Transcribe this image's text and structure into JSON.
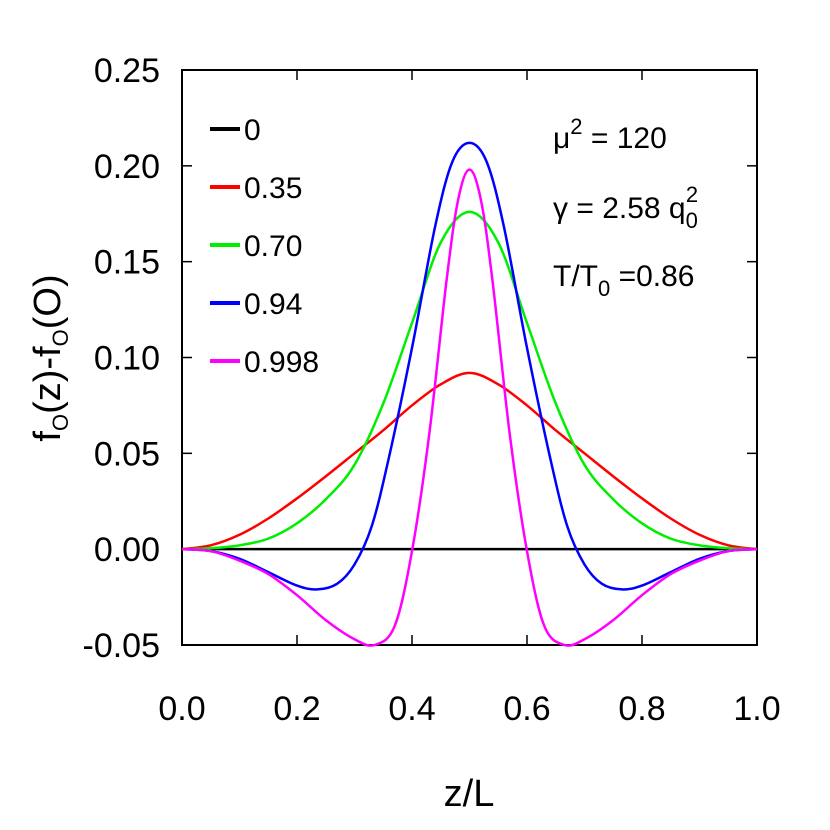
{
  "chart_data": {
    "type": "line",
    "xlabel": "z/L",
    "ylabel": {
      "main": "f",
      "sub1": "O",
      "mid": "(z)-f",
      "sub2": "O",
      "end": "(O)"
    },
    "xlim": [
      0.0,
      1.0
    ],
    "ylim": [
      -0.05,
      0.25
    ],
    "x_ticks": [
      "0.0",
      "0.2",
      "0.4",
      "0.6",
      "0.8",
      "1.0"
    ],
    "x_tick_values": [
      0.0,
      0.2,
      0.4,
      0.6,
      0.8,
      1.0
    ],
    "y_ticks": [
      "-0.05",
      "0.00",
      "0.05",
      "0.10",
      "0.15",
      "0.20",
      "0.25"
    ],
    "y_tick_values": [
      -0.05,
      0.0,
      0.05,
      0.1,
      0.15,
      0.2,
      0.25
    ],
    "grid": false,
    "legend_position": "top-left",
    "annotations": {
      "line1": {
        "pre": "μ",
        "sup": "2",
        "post": " = 120"
      },
      "line2": {
        "pre": "γ = 2.58 q",
        "sub": "0",
        "sup": "2"
      },
      "line3": {
        "pre": "T/T",
        "sub": "0",
        "post": " =0.86"
      }
    },
    "series": [
      {
        "name": "0",
        "color": "#000000",
        "x": [
          0,
          0.1,
          0.2,
          0.3,
          0.4,
          0.5,
          0.6,
          0.7,
          0.8,
          0.9,
          1.0
        ],
        "y": [
          0,
          0,
          0,
          0,
          0,
          0,
          0,
          0,
          0,
          0,
          0
        ]
      },
      {
        "name": "0.35",
        "color": "#ff0000",
        "x": [
          0,
          0.05,
          0.1,
          0.15,
          0.2,
          0.25,
          0.3,
          0.35,
          0.4,
          0.45,
          0.5,
          0.55,
          0.6,
          0.65,
          0.7,
          0.75,
          0.8,
          0.85,
          0.9,
          0.95,
          1.0
        ],
        "y": [
          0,
          0.002,
          0.0075,
          0.016,
          0.0265,
          0.038,
          0.05,
          0.062,
          0.075,
          0.086,
          0.092,
          0.086,
          0.075,
          0.062,
          0.05,
          0.038,
          0.0265,
          0.016,
          0.0075,
          0.002,
          0
        ]
      },
      {
        "name": "0.70",
        "color": "#00ee00",
        "x": [
          0,
          0.05,
          0.1,
          0.15,
          0.2,
          0.25,
          0.3,
          0.35,
          0.4,
          0.45,
          0.5,
          0.55,
          0.6,
          0.65,
          0.7,
          0.75,
          0.8,
          0.85,
          0.9,
          0.95,
          1.0
        ],
        "y": [
          0,
          0.0005,
          0.002,
          0.0055,
          0.0135,
          0.026,
          0.044,
          0.076,
          0.118,
          0.16,
          0.176,
          0.16,
          0.118,
          0.076,
          0.044,
          0.026,
          0.0135,
          0.0055,
          0.002,
          0.0005,
          0
        ]
      },
      {
        "name": "0.94",
        "color": "#0000ff",
        "x": [
          0,
          0.05,
          0.1,
          0.15,
          0.2,
          0.235,
          0.27,
          0.3,
          0.33,
          0.36,
          0.4,
          0.44,
          0.47,
          0.5,
          0.53,
          0.56,
          0.6,
          0.64,
          0.67,
          0.7,
          0.73,
          0.765,
          0.8,
          0.85,
          0.9,
          0.95,
          1.0
        ],
        "y": [
          0,
          -0.001,
          -0.005,
          -0.012,
          -0.019,
          -0.021,
          -0.018,
          -0.008,
          0.012,
          0.048,
          0.105,
          0.168,
          0.202,
          0.212,
          0.202,
          0.168,
          0.105,
          0.048,
          0.012,
          -0.008,
          -0.018,
          -0.021,
          -0.019,
          -0.012,
          -0.005,
          -0.001,
          0
        ]
      },
      {
        "name": "0.998",
        "color": "#ff00ff",
        "x": [
          0,
          0.05,
          0.1,
          0.15,
          0.2,
          0.25,
          0.3,
          0.335,
          0.37,
          0.4,
          0.43,
          0.46,
          0.48,
          0.5,
          0.52,
          0.54,
          0.57,
          0.6,
          0.63,
          0.665,
          0.7,
          0.75,
          0.8,
          0.85,
          0.9,
          0.95,
          1.0
        ],
        "y": [
          0,
          -0.001,
          -0.006,
          -0.013,
          -0.024,
          -0.037,
          -0.047,
          -0.05,
          -0.04,
          -0.001,
          0.06,
          0.14,
          0.182,
          0.198,
          0.182,
          0.14,
          0.06,
          -0.001,
          -0.04,
          -0.05,
          -0.047,
          -0.037,
          -0.024,
          -0.013,
          -0.006,
          -0.001,
          0
        ]
      }
    ]
  }
}
